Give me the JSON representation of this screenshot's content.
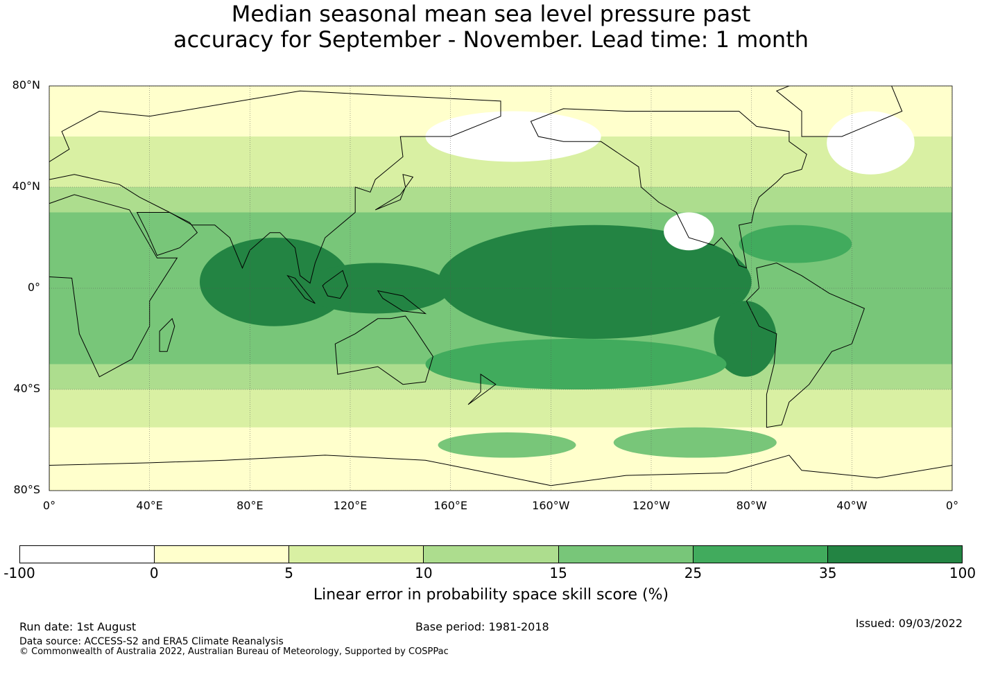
{
  "title": {
    "line1": "Median seasonal mean sea level pressure past",
    "line2": "accuracy for September - November. Lead time: 1 month"
  },
  "map": {
    "lat_labels": [
      "80°N",
      "40°N",
      "0°",
      "40°S",
      "80°S"
    ],
    "lon_labels": [
      "0°",
      "40°E",
      "80°E",
      "120°E",
      "160°E",
      "160°W",
      "120°W",
      "80°W",
      "40°W",
      "0°"
    ],
    "lat_range": [
      -80,
      80
    ],
    "lon_range": [
      0,
      360
    ],
    "grid": true,
    "regions": [
      {
        "name": "tropical-pacific-core",
        "score_class": 35,
        "lon": [
          155,
          280
        ],
        "lat": [
          -20,
          25
        ]
      },
      {
        "name": "indian-ocean-core",
        "score_class": 35,
        "lon": [
          60,
          120
        ],
        "lat": [
          -15,
          20
        ]
      },
      {
        "name": "maritime-continent",
        "score_class": 35,
        "lon": [
          100,
          160
        ],
        "lat": [
          -10,
          10
        ]
      },
      {
        "name": "south-america-west-coast",
        "score_class": 35,
        "lon": [
          265,
          290
        ],
        "lat": [
          -35,
          -5
        ]
      },
      {
        "name": "caribbean",
        "score_class": 25,
        "lon": [
          275,
          320
        ],
        "lat": [
          10,
          25
        ]
      },
      {
        "name": "south-pacific-arc",
        "score_class": 25,
        "lon": [
          150,
          270
        ],
        "lat": [
          -40,
          -20
        ]
      },
      {
        "name": "southern-ocean-pacific",
        "score_class": 15,
        "lon": [
          225,
          290
        ],
        "lat": [
          -67,
          -55
        ]
      },
      {
        "name": "southern-ocean-indian",
        "score_class": 15,
        "lon": [
          155,
          210
        ],
        "lat": [
          -67,
          -57
        ]
      },
      {
        "name": "north-pacific-negative",
        "score_class": -100,
        "lon": [
          150,
          220
        ],
        "lat": [
          50,
          70
        ]
      },
      {
        "name": "mexico-west-negative",
        "score_class": -100,
        "lon": [
          245,
          265
        ],
        "lat": [
          15,
          30
        ]
      },
      {
        "name": "greenland-negative",
        "score_class": -100,
        "lon": [
          310,
          345
        ],
        "lat": [
          45,
          70
        ]
      }
    ]
  },
  "colorbar": {
    "colors": [
      "#ffffff",
      "#ffffcc",
      "#d9f0a3",
      "#addd8e",
      "#78c679",
      "#41ab5d",
      "#238443"
    ],
    "tick_labels": [
      "-100",
      "0",
      "5",
      "10",
      "15",
      "25",
      "35",
      "100"
    ],
    "title": "Linear error in probability space skill score (%)"
  },
  "footer": {
    "run_date": "Run date: 1st August",
    "base_period": "Base period: 1981-2018",
    "issued": "Issued: 09/03/2022",
    "data_source": "Data source: ACCESS-S2 and ERA5 Climate Reanalysis",
    "copyright": "© Commonwealth of Australia 2022, Australian Bureau of Meteorology, Supported by COSPPac"
  }
}
